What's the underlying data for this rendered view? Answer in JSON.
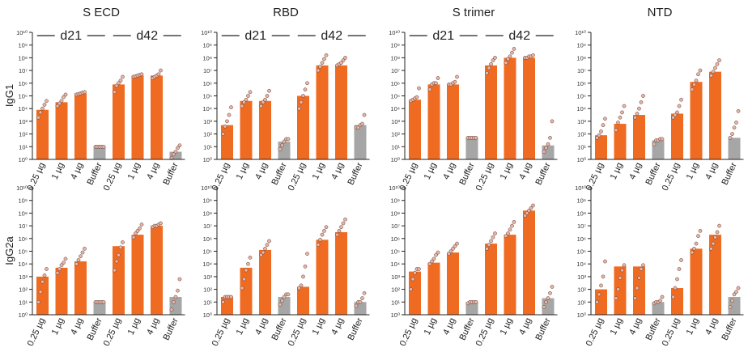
{
  "colors": {
    "vaccine": "#F06B22",
    "buffer": "#A6A6A6",
    "dot_fill": "#E8B5A6",
    "axis": "#222222"
  },
  "chart_data": [
    {
      "type": "bar",
      "antigen": "S ECD",
      "row": "IgG1",
      "show_groups": true,
      "ylim_log10": [
        0,
        10
      ],
      "categories": [
        "0.25 µg",
        "1 µg",
        "4 µg",
        "Buffer",
        "0.25 µg",
        "1 µg",
        "4 µg",
        "Buffer"
      ],
      "values_log10": [
        3.9,
        4.5,
        5.2,
        1.0,
        5.9,
        6.6,
        6.6,
        0.6
      ],
      "points_log10": [
        [
          3.3,
          3.7,
          4.0,
          4.3,
          4.6
        ],
        [
          4.2,
          4.4,
          4.6,
          4.9,
          5.1
        ],
        [
          5.1,
          5.15,
          5.2,
          5.25,
          5.3
        ],
        [
          1.0,
          1.0,
          1.0,
          1.0,
          1.0
        ],
        [
          5.3,
          5.8,
          6.0,
          6.2,
          6.5
        ],
        [
          6.5,
          6.55,
          6.6,
          6.65,
          6.7
        ],
        [
          6.4,
          6.5,
          6.6,
          6.7,
          7.0
        ],
        [
          0.1,
          0.4,
          0.6,
          0.9,
          1.1
        ]
      ]
    },
    {
      "type": "bar",
      "antigen": "RBD",
      "row": "IgG1",
      "show_groups": true,
      "ylim_log10": [
        0,
        10
      ],
      "categories": [
        "0.25 µg",
        "1 µg",
        "4 µg",
        "Buffer",
        "0.25 µg",
        "1 µg",
        "4 µg",
        "Buffer"
      ],
      "values_log10": [
        2.7,
        4.6,
        4.6,
        1.4,
        5.0,
        7.4,
        7.4,
        2.7
      ],
      "points_log10": [
        [
          2.0,
          2.6,
          3.0,
          3.5,
          4.1
        ],
        [
          4.2,
          4.5,
          4.7,
          5.0,
          5.3
        ],
        [
          4.2,
          4.5,
          4.7,
          5.0,
          5.4
        ],
        [
          0.8,
          1.1,
          1.4,
          1.6,
          1.6
        ],
        [
          4.0,
          4.5,
          5.0,
          5.5,
          6.0
        ],
        [
          7.0,
          7.3,
          7.6,
          7.9,
          8.2
        ],
        [
          7.4,
          7.5,
          7.6,
          7.8,
          8.0
        ],
        [
          2.5,
          2.5,
          2.7,
          2.8,
          3.5
        ]
      ]
    },
    {
      "type": "bar",
      "antigen": "S trimer",
      "row": "IgG1",
      "show_groups": true,
      "ylim_log10": [
        0,
        10
      ],
      "categories": [
        "0.25 µg",
        "1 µg",
        "4 µg",
        "Buffer",
        "0.25 µg",
        "1 µg",
        "4 µg",
        "Buffer"
      ],
      "values_log10": [
        4.7,
        5.9,
        5.9,
        1.7,
        7.4,
        8.0,
        8.0,
        1.1
      ],
      "points_log10": [
        [
          4.6,
          4.7,
          4.8,
          4.9,
          5.6
        ],
        [
          5.5,
          5.9,
          6.0,
          6.0,
          6.4
        ],
        [
          5.9,
          5.9,
          6.0,
          6.1,
          6.5
        ],
        [
          1.7,
          1.7,
          1.7,
          1.7,
          1.7
        ],
        [
          6.8,
          7.2,
          7.5,
          7.8,
          8.0
        ],
        [
          7.6,
          7.9,
          8.1,
          8.4,
          8.7
        ],
        [
          8.0,
          8.0,
          8.1,
          8.1,
          8.2
        ],
        [
          0.6,
          0.9,
          1.2,
          1.7,
          3.0
        ]
      ]
    },
    {
      "type": "bar",
      "antigen": "NTD",
      "row": "IgG1",
      "show_groups": false,
      "ylim_log10": [
        0,
        10
      ],
      "categories": [
        "0.25 µg",
        "1 µg",
        "4 µg",
        "Buffer",
        "0.25 µg",
        "1 µg",
        "4 µg",
        "Buffer"
      ],
      "values_log10": [
        1.9,
        2.8,
        3.5,
        1.5,
        3.6,
        6.1,
        6.9,
        1.7
      ],
      "points_log10": [
        [
          1.7,
          1.9,
          2.2,
          2.7,
          3.2
        ],
        [
          2.3,
          2.9,
          3.3,
          3.7,
          4.2
        ],
        [
          3.3,
          3.6,
          4.0,
          4.5,
          5.0
        ],
        [
          1.2,
          1.5,
          1.5,
          1.6,
          1.6
        ],
        [
          3.3,
          3.5,
          3.7,
          4.2,
          4.7
        ],
        [
          5.5,
          5.9,
          6.2,
          6.7,
          7.0
        ],
        [
          6.6,
          6.9,
          7.2,
          7.5,
          7.8
        ],
        [
          1.7,
          2.0,
          2.5,
          2.9,
          3.8
        ]
      ]
    },
    {
      "type": "bar",
      "antigen": "S ECD",
      "row": "IgG2a",
      "show_groups": false,
      "ylim_log10": [
        0,
        10
      ],
      "categories": [
        "0.25 µg",
        "1 µg",
        "4 µg",
        "Buffer",
        "0.25 µg",
        "1 µg",
        "4 µg",
        "Buffer"
      ],
      "values_log10": [
        3.0,
        3.7,
        4.2,
        1.0,
        5.4,
        6.3,
        7.0,
        1.4
      ],
      "points_log10": [
        [
          1.0,
          1.8,
          2.6,
          3.1,
          3.6
        ],
        [
          3.3,
          3.6,
          3.9,
          4.1,
          4.4
        ],
        [
          4.0,
          4.3,
          4.6,
          4.9,
          5.2
        ],
        [
          1.0,
          1.0,
          1.0,
          1.0,
          1.0
        ],
        [
          3.5,
          4.2,
          4.7,
          5.3,
          5.7
        ],
        [
          6.1,
          6.4,
          6.6,
          6.8,
          7.1
        ],
        [
          6.9,
          7.0,
          7.0,
          7.1,
          7.2
        ],
        [
          0.4,
          1.0,
          1.4,
          1.9,
          2.8
        ]
      ]
    },
    {
      "type": "bar",
      "antigen": "RBD",
      "row": "IgG2a",
      "show_groups": false,
      "ylim_log10": [
        0,
        10
      ],
      "categories": [
        "0.25 µg",
        "1 µg",
        "4 µg",
        "Buffer",
        "0.25 µg",
        "1 µg",
        "4 µg",
        "Buffer"
      ],
      "values_log10": [
        1.4,
        3.7,
        5.1,
        1.4,
        2.2,
        5.9,
        6.5,
        1.0
      ],
      "points_log10": [
        [
          1.0,
          1.4,
          1.4,
          1.4,
          1.4
        ],
        [
          2.1,
          2.8,
          3.5,
          4.0,
          4.5
        ],
        [
          4.7,
          4.9,
          5.2,
          5.5,
          5.8
        ],
        [
          0.8,
          1.1,
          1.4,
          1.6,
          1.6
        ],
        [
          2.1,
          2.3,
          3.0,
          3.8,
          4.8
        ],
        [
          5.5,
          5.9,
          6.3,
          6.6,
          6.9
        ],
        [
          6.3,
          6.6,
          6.9,
          7.2,
          7.5
        ],
        [
          0.7,
          1.0,
          1.0,
          1.3,
          1.7
        ]
      ]
    },
    {
      "type": "bar",
      "antigen": "S trimer",
      "row": "IgG2a",
      "show_groups": false,
      "ylim_log10": [
        0,
        10
      ],
      "categories": [
        "0.25 µg",
        "1 µg",
        "4 µg",
        "Buffer",
        "0.25 µg",
        "1 µg",
        "4 µg",
        "Buffer"
      ],
      "values_log10": [
        3.4,
        4.1,
        4.9,
        1.0,
        5.6,
        6.3,
        8.2,
        1.3
      ],
      "points_log10": [
        [
          2.0,
          2.8,
          3.3,
          3.6,
          3.6
        ],
        [
          4.0,
          4.2,
          4.4,
          4.7,
          4.9
        ],
        [
          4.8,
          5.0,
          5.2,
          5.4,
          5.6
        ],
        [
          0.9,
          1.0,
          1.0,
          1.0,
          1.0
        ],
        [
          5.2,
          5.5,
          5.8,
          6.1,
          6.4
        ],
        [
          6.2,
          6.4,
          6.7,
          7.0,
          7.3
        ],
        [
          7.8,
          8.0,
          8.2,
          8.4,
          8.6
        ],
        [
          0.6,
          1.0,
          1.3,
          1.7,
          2.2
        ]
      ]
    },
    {
      "type": "bar",
      "antigen": "NTD",
      "row": "IgG2a",
      "show_groups": false,
      "ylim_log10": [
        0,
        10
      ],
      "categories": [
        "0.25 µg",
        "1 µg",
        "4 µg",
        "Buffer",
        "0.25 µg",
        "1 µg",
        "4 µg",
        "Buffer"
      ],
      "values_log10": [
        2.0,
        3.8,
        3.8,
        1.0,
        2.1,
        5.2,
        6.3,
        1.4
      ],
      "points_log10": [
        [
          1.0,
          1.6,
          2.3,
          3.0,
          4.2
        ],
        [
          1.3,
          2.0,
          2.9,
          3.5,
          3.9
        ],
        [
          1.3,
          2.1,
          2.9,
          3.6,
          3.9
        ],
        [
          0.9,
          1.0,
          1.0,
          1.1,
          1.4
        ],
        [
          1.4,
          2.1,
          2.8,
          3.6,
          4.3
        ],
        [
          4.9,
          5.2,
          5.6,
          6.2,
          6.6
        ],
        [
          5.2,
          5.6,
          6.1,
          6.5,
          7.0
        ],
        [
          0.6,
          1.1,
          1.6,
          1.8,
          2.1
        ]
      ]
    }
  ],
  "labels": {
    "column_titles": [
      "S ECD",
      "RBD",
      "S trimer",
      "NTD"
    ],
    "row_labels": [
      "IgG1",
      "IgG2a"
    ],
    "group_labels": [
      "d21",
      "d42"
    ],
    "x_categories": [
      "0.25 µg",
      "1 µg",
      "4 µg",
      "Buffer",
      "0.25 µg",
      "1 µg",
      "4 µg",
      "Buffer"
    ],
    "y_ticks": [
      "10⁰",
      "10¹",
      "10²",
      "10³",
      "10⁴",
      "10⁵",
      "10⁶",
      "10⁷",
      "10⁸",
      "10⁹",
      "10¹⁰"
    ]
  }
}
